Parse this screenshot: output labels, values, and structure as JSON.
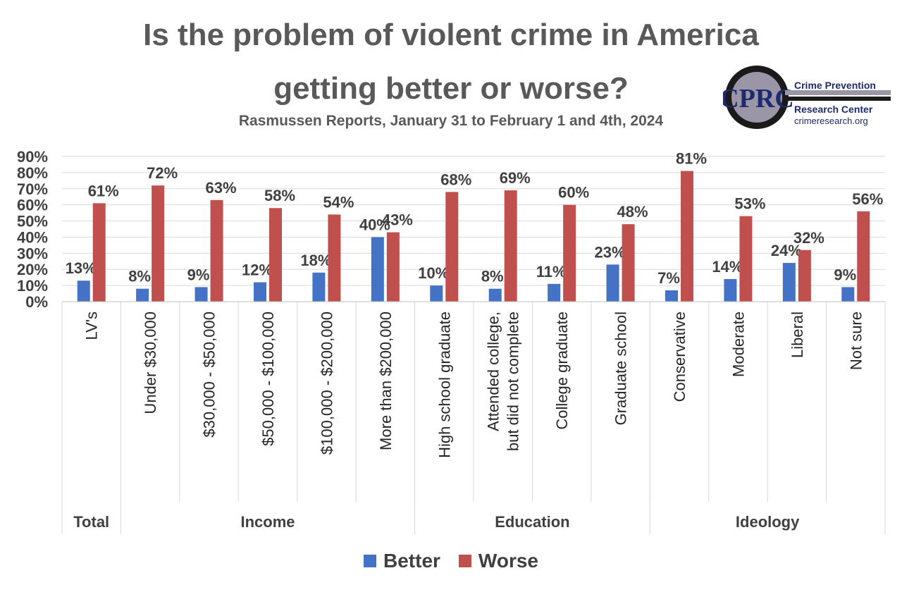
{
  "title_line1": "Is the problem of violent crime in America",
  "title_line2": "getting better or worse?",
  "subtitle": "Rasmussen Reports, January 31 to February 1 and 4th, 2024",
  "logo": {
    "letters": "CPRC",
    "name_line1": "Crime Prevention",
    "name_line2": "Research Center",
    "url": "crimeresearch.org"
  },
  "chart_data": {
    "type": "bar",
    "ylim": [
      0,
      90
    ],
    "yticks": [
      0,
      10,
      20,
      30,
      40,
      50,
      60,
      70,
      80,
      90
    ],
    "ytick_labels": [
      "0%",
      "10%",
      "20%",
      "30%",
      "40%",
      "50%",
      "60%",
      "70%",
      "80%",
      "90%"
    ],
    "grid": true,
    "legend_position": "bottom",
    "categories": [
      "LV's",
      "Under $30,000",
      "$30,000 - $50,000",
      "$50,000 - $100,000",
      "$100,000 - $200,000",
      "More than $200,000",
      "High school graduate",
      "Attended college, but did not complete",
      "College graduate",
      "Graduate school",
      "Conservative",
      "Moderate",
      "Liberal",
      "Not sure"
    ],
    "groups": [
      {
        "name": "Total",
        "count": 1
      },
      {
        "name": "Income",
        "count": 5
      },
      {
        "name": "Education",
        "count": 4
      },
      {
        "name": "Ideology",
        "count": 4
      }
    ],
    "series": [
      {
        "name": "Better",
        "color": "#4472c4",
        "values": [
          13,
          8,
          9,
          12,
          18,
          40,
          10,
          8,
          11,
          23,
          7,
          14,
          24,
          9
        ],
        "labels": [
          "13%",
          "8%",
          "9%",
          "12%",
          "18%",
          "40%",
          "10%",
          "8%",
          "11%",
          "23%",
          "7%",
          "14%",
          "24%",
          "9%"
        ]
      },
      {
        "name": "Worse",
        "color": "#c0504d",
        "values": [
          61,
          72,
          63,
          58,
          54,
          43,
          68,
          69,
          60,
          48,
          81,
          53,
          32,
          56
        ],
        "labels": [
          "61%",
          "72%",
          "63%",
          "58%",
          "54%",
          "43%",
          "68%",
          "69%",
          "60%",
          "48%",
          "81%",
          "53%",
          "32%",
          "56%"
        ]
      }
    ]
  }
}
